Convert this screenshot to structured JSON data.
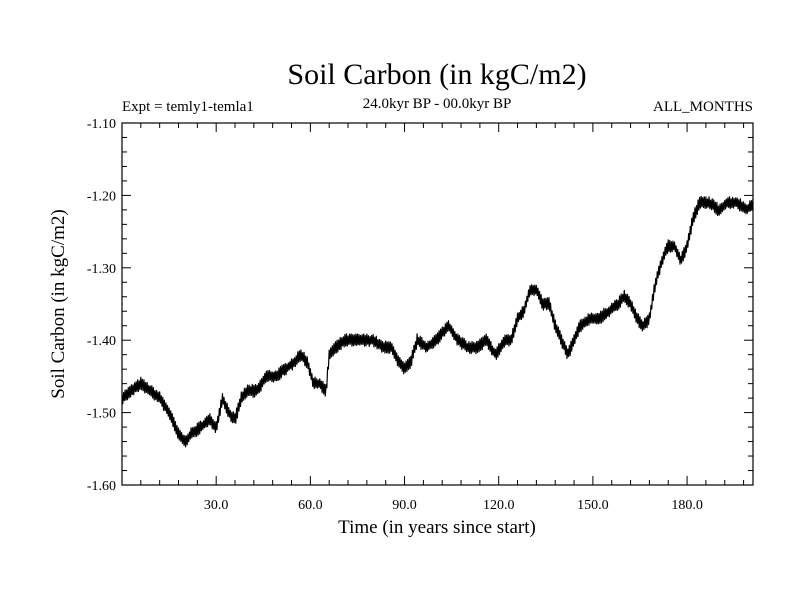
{
  "chart_data": {
    "type": "line",
    "title": "Soil Carbon (in kgC/m2)",
    "subtitle_left": "Expt = temly1-temla1",
    "subtitle_center": "24.0kyr BP - 00.0kyr BP",
    "subtitle_right": "ALL_MONTHS",
    "xlabel": "Time (in years since start)",
    "ylabel": "Soil Carbon (in kgC/m2)",
    "xlim": [
      0,
      201
    ],
    "ylim": [
      -1.6,
      -1.1
    ],
    "xticks": [
      30,
      60,
      90,
      120,
      150,
      180
    ],
    "xtick_labels": [
      "30.0",
      "60.0",
      "90.0",
      "120.0",
      "150.0",
      "180.0"
    ],
    "yticks": [
      -1.1,
      -1.2,
      -1.3,
      -1.4,
      -1.5,
      -1.6
    ],
    "ytick_labels": [
      "-1.10",
      "-1.20",
      "-1.30",
      "-1.40",
      "-1.50",
      "-1.60"
    ],
    "noise_amplitude": 0.009,
    "series": [
      {
        "name": "Soil Carbon",
        "color": "#000000",
        "points": [
          [
            0,
            -1.48
          ],
          [
            3,
            -1.47
          ],
          [
            6,
            -1.46
          ],
          [
            9,
            -1.47
          ],
          [
            12,
            -1.48
          ],
          [
            15,
            -1.5
          ],
          [
            18,
            -1.53
          ],
          [
            20,
            -1.54
          ],
          [
            22,
            -1.53
          ],
          [
            25,
            -1.52
          ],
          [
            28,
            -1.51
          ],
          [
            30,
            -1.52
          ],
          [
            32,
            -1.48
          ],
          [
            34,
            -1.5
          ],
          [
            36,
            -1.51
          ],
          [
            38,
            -1.48
          ],
          [
            40,
            -1.47
          ],
          [
            43,
            -1.47
          ],
          [
            46,
            -1.45
          ],
          [
            49,
            -1.45
          ],
          [
            52,
            -1.44
          ],
          [
            55,
            -1.43
          ],
          [
            57,
            -1.42
          ],
          [
            59,
            -1.43
          ],
          [
            61,
            -1.46
          ],
          [
            63,
            -1.46
          ],
          [
            65,
            -1.47
          ],
          [
            66,
            -1.42
          ],
          [
            68,
            -1.41
          ],
          [
            71,
            -1.4
          ],
          [
            74,
            -1.4
          ],
          [
            77,
            -1.4
          ],
          [
            80,
            -1.4
          ],
          [
            83,
            -1.41
          ],
          [
            86,
            -1.41
          ],
          [
            88,
            -1.43
          ],
          [
            90,
            -1.44
          ],
          [
            92,
            -1.43
          ],
          [
            94,
            -1.4
          ],
          [
            97,
            -1.41
          ],
          [
            100,
            -1.4
          ],
          [
            102,
            -1.39
          ],
          [
            104,
            -1.38
          ],
          [
            107,
            -1.4
          ],
          [
            110,
            -1.41
          ],
          [
            113,
            -1.41
          ],
          [
            116,
            -1.4
          ],
          [
            119,
            -1.42
          ],
          [
            122,
            -1.4
          ],
          [
            124,
            -1.4
          ],
          [
            126,
            -1.37
          ],
          [
            128,
            -1.36
          ],
          [
            130,
            -1.33
          ],
          [
            132,
            -1.33
          ],
          [
            134,
            -1.35
          ],
          [
            136,
            -1.35
          ],
          [
            138,
            -1.38
          ],
          [
            140,
            -1.4
          ],
          [
            142,
            -1.42
          ],
          [
            144,
            -1.4
          ],
          [
            146,
            -1.38
          ],
          [
            149,
            -1.37
          ],
          [
            152,
            -1.37
          ],
          [
            155,
            -1.36
          ],
          [
            158,
            -1.35
          ],
          [
            160,
            -1.34
          ],
          [
            162,
            -1.35
          ],
          [
            164,
            -1.37
          ],
          [
            166,
            -1.38
          ],
          [
            168,
            -1.37
          ],
          [
            170,
            -1.32
          ],
          [
            172,
            -1.29
          ],
          [
            174,
            -1.27
          ],
          [
            176,
            -1.27
          ],
          [
            178,
            -1.29
          ],
          [
            180,
            -1.27
          ],
          [
            182,
            -1.23
          ],
          [
            184,
            -1.21
          ],
          [
            187,
            -1.21
          ],
          [
            190,
            -1.22
          ],
          [
            193,
            -1.21
          ],
          [
            196,
            -1.21
          ],
          [
            199,
            -1.22
          ],
          [
            201,
            -1.21
          ]
        ]
      }
    ]
  }
}
